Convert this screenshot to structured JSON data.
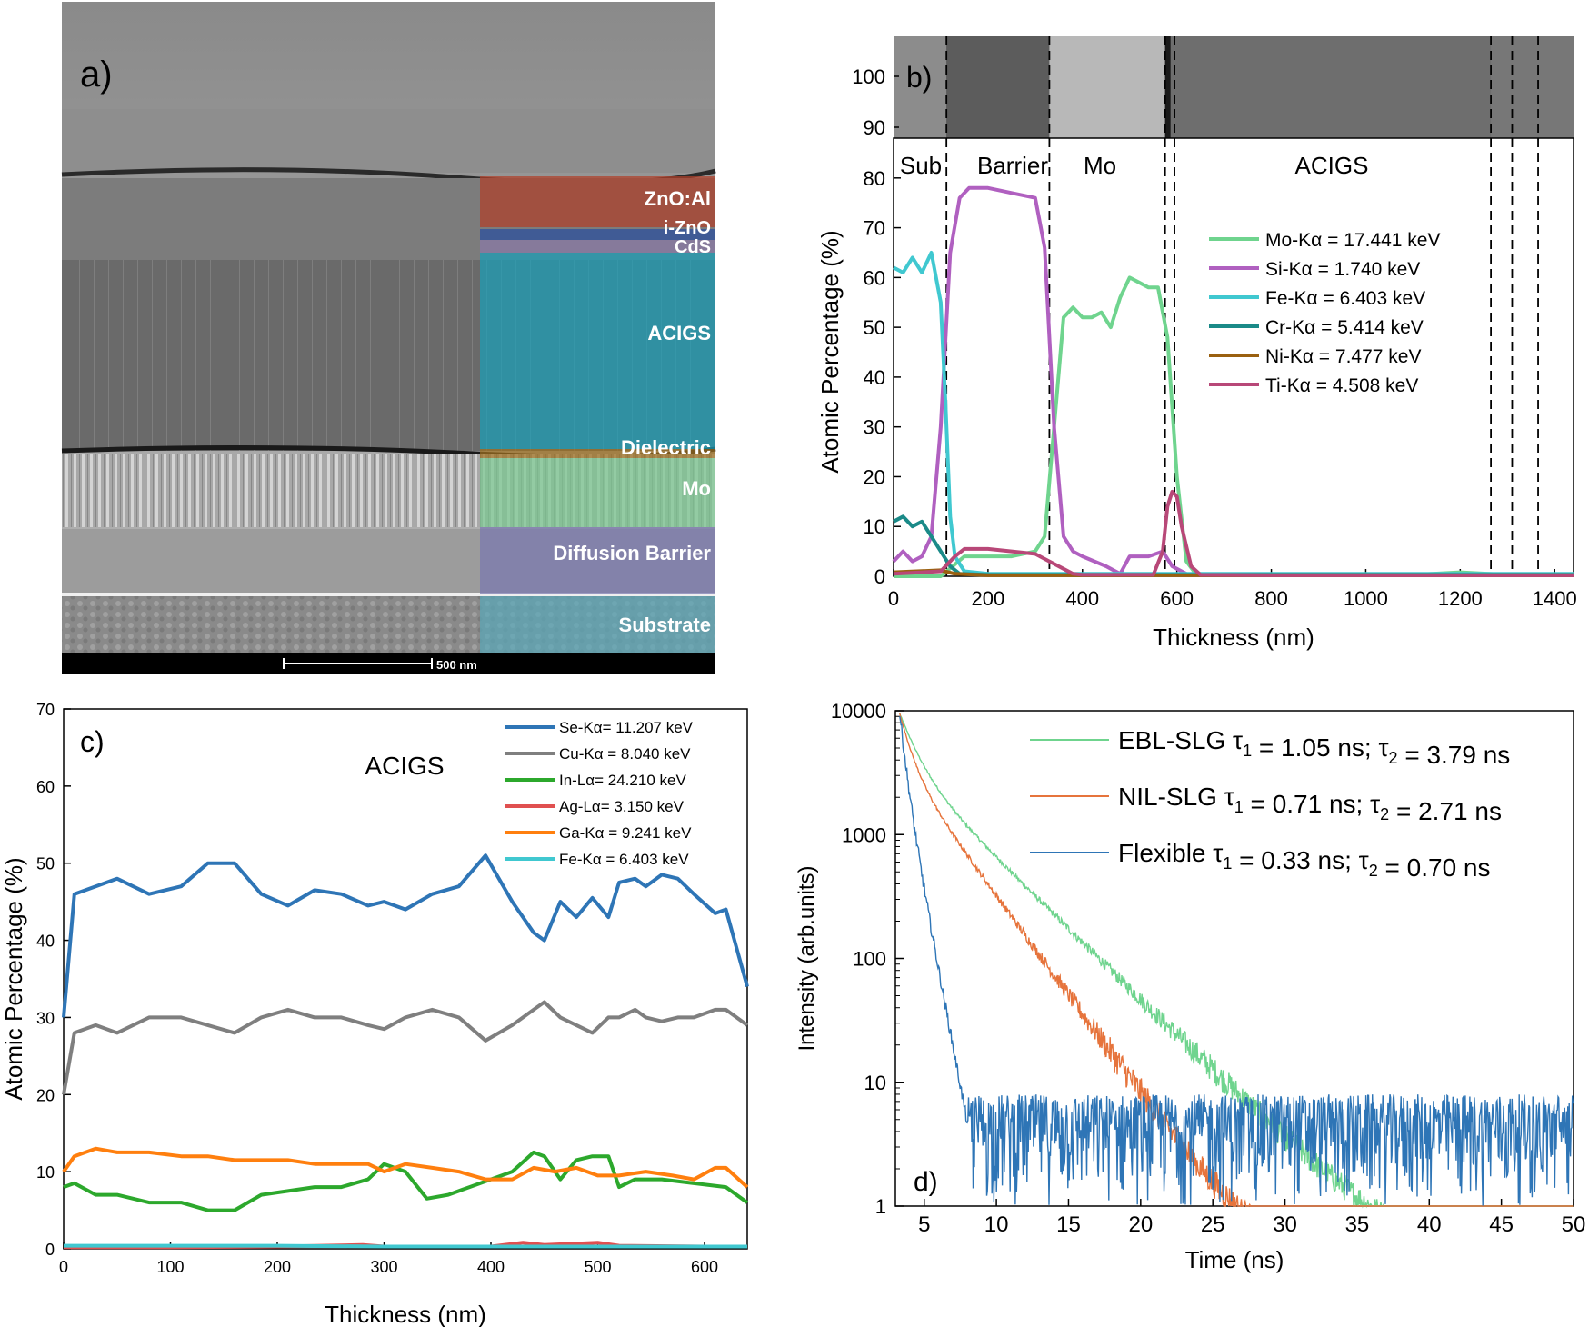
{
  "panel_a": {
    "label": "a)",
    "layers": [
      {
        "name": "ZnO:Al",
        "color": "#b0402a"
      },
      {
        "name": "i-ZnO",
        "color": "#2a4fa0"
      },
      {
        "name": "CdS",
        "color": "#8a7aa8"
      },
      {
        "name": "ACIGS",
        "color": "#1aa0b8"
      },
      {
        "name": "Dielectric",
        "color": "#a07020"
      },
      {
        "name": "Mo",
        "color": "#7ac890"
      },
      {
        "name": "Diffusion Barrier",
        "color": "#7a78b0"
      },
      {
        "name": "Substrate",
        "color": "#5aa8b8"
      }
    ],
    "scale_bar": "500 nm"
  },
  "chart_data": [
    {
      "id": "b",
      "type": "line",
      "panel_label": "b)",
      "xlabel": "Thickness (nm)",
      "ylabel": "Atomic Percentage (%)",
      "xlim": [
        0,
        1440
      ],
      "ylim": [
        0,
        88
      ],
      "xticks": [
        0,
        200,
        400,
        600,
        800,
        1000,
        1200,
        1400
      ],
      "yticks": [
        0,
        10,
        20,
        30,
        40,
        50,
        60,
        70,
        80
      ],
      "image_strip_ticks": [
        90,
        100
      ],
      "region_labels": [
        "Sub",
        "Barrier",
        "Mo",
        "ACIGS"
      ],
      "boundaries": [
        112,
        330,
        575,
        595,
        1265,
        1310,
        1365
      ],
      "series": [
        {
          "name": "Mo-Kα = 17.441 keV",
          "color": "#6fd48e",
          "x": [
            0,
            100,
            150,
            200,
            250,
            300,
            320,
            340,
            360,
            380,
            400,
            420,
            440,
            460,
            480,
            500,
            520,
            540,
            560,
            580,
            600,
            620,
            640,
            700,
            900,
            1100,
            1200,
            1300,
            1440
          ],
          "y": [
            0,
            0,
            4,
            4,
            4,
            5,
            8,
            30,
            52,
            54,
            52,
            52,
            53,
            50,
            56,
            60,
            59,
            58,
            58,
            48,
            20,
            3,
            0.5,
            0.3,
            0.3,
            0.3,
            0.8,
            0.3,
            0.3
          ]
        },
        {
          "name": "Si-Kα = 1.740 keV",
          "color": "#b060c0",
          "x": [
            0,
            20,
            40,
            60,
            80,
            100,
            120,
            140,
            160,
            200,
            250,
            300,
            320,
            340,
            360,
            380,
            400,
            450,
            480,
            500,
            540,
            570,
            590,
            620,
            640,
            700,
            900,
            1100,
            1440
          ],
          "y": [
            3,
            5,
            3,
            4,
            8,
            30,
            65,
            76,
            78,
            78,
            77,
            76,
            66,
            30,
            8,
            5,
            4,
            2,
            0.5,
            4,
            4,
            5,
            2,
            0.5,
            0.2,
            0.2,
            0.2,
            0.2,
            0.2
          ]
        },
        {
          "name": "Fe-Kα = 6.403 keV",
          "color": "#40c8d0",
          "x": [
            0,
            20,
            40,
            60,
            80,
            100,
            110,
            120,
            130,
            150,
            200,
            400,
            600,
            800,
            1000,
            1200,
            1440
          ],
          "y": [
            62,
            61,
            64,
            61,
            65,
            55,
            35,
            12,
            4,
            1,
            0.5,
            0.5,
            0.5,
            0.5,
            0.5,
            0.5,
            0.5
          ]
        },
        {
          "name": "Cr-Kα = 5.414 keV",
          "color": "#1a8a88",
          "x": [
            0,
            20,
            40,
            60,
            80,
            100,
            120,
            140,
            200,
            400,
            800,
            1440
          ],
          "y": [
            11,
            12,
            10,
            11,
            8,
            5,
            2,
            0.5,
            0.3,
            0.3,
            0.3,
            0.3
          ]
        },
        {
          "name": "Ni-Kα = 7.477 keV",
          "color": "#9a6010",
          "x": [
            0,
            100,
            130,
            200,
            400,
            800,
            1440
          ],
          "y": [
            0.8,
            1.2,
            0.5,
            0.2,
            0.2,
            0.2,
            0.2
          ]
        },
        {
          "name": "Ti-Kα = 4.508 keV",
          "color": "#b84878",
          "x": [
            0,
            100,
            130,
            150,
            200,
            250,
            300,
            330,
            360,
            380,
            400,
            550,
            570,
            580,
            590,
            600,
            610,
            630,
            650,
            800,
            1440
          ],
          "y": [
            0.5,
            1,
            4,
            5.5,
            5.5,
            5,
            4.5,
            3,
            1.5,
            0.5,
            0.3,
            0.3,
            5,
            14,
            17,
            16,
            10,
            2,
            0.3,
            0.2,
            0.2
          ]
        }
      ]
    },
    {
      "id": "c",
      "type": "line",
      "panel_label": "c)",
      "annotation": "ACIGS",
      "xlabel": "Thickness (nm)",
      "ylabel": "Atomic Percentage (%)",
      "xlim": [
        0,
        640
      ],
      "ylim": [
        0,
        70
      ],
      "xticks": [
        0,
        100,
        200,
        300,
        400,
        500,
        600
      ],
      "yticks": [
        0,
        10,
        20,
        30,
        40,
        50,
        60,
        70
      ],
      "series": [
        {
          "name": "Se-Kα= 11.207 keV",
          "color": "#2e75b6",
          "x": [
            0,
            10,
            30,
            50,
            80,
            110,
            135,
            160,
            185,
            210,
            235,
            260,
            285,
            300,
            320,
            345,
            370,
            395,
            420,
            440,
            450,
            465,
            480,
            495,
            510,
            520,
            535,
            545,
            560,
            575,
            590,
            610,
            620,
            640
          ],
          "y": [
            30,
            46,
            47,
            48,
            46,
            47,
            50,
            50,
            46,
            44.5,
            46.5,
            46,
            44.5,
            45,
            44,
            46,
            47,
            51,
            45,
            41,
            40,
            45,
            43,
            45.5,
            43,
            47.5,
            48,
            47,
            48.5,
            48,
            46,
            43.5,
            44,
            34
          ]
        },
        {
          "name": "Cu-Kα = 8.040 keV",
          "color": "#7f7f7f",
          "x": [
            0,
            10,
            30,
            50,
            80,
            110,
            135,
            160,
            185,
            210,
            235,
            260,
            285,
            300,
            320,
            345,
            370,
            395,
            420,
            440,
            450,
            465,
            480,
            495,
            510,
            520,
            535,
            545,
            560,
            575,
            590,
            610,
            620,
            640
          ],
          "y": [
            20,
            28,
            29,
            28,
            30,
            30,
            29,
            28,
            30,
            31,
            30,
            30,
            29,
            28.5,
            30,
            31,
            30,
            27,
            29,
            31,
            32,
            30,
            29,
            28,
            30,
            30,
            31,
            30,
            29.5,
            30,
            30,
            31,
            31,
            29
          ]
        },
        {
          "name": "In-Lα= 24.210 keV",
          "color": "#2ca82c",
          "x": [
            0,
            10,
            30,
            50,
            80,
            110,
            135,
            160,
            185,
            210,
            235,
            260,
            285,
            300,
            320,
            340,
            360,
            380,
            400,
            420,
            440,
            450,
            465,
            480,
            495,
            510,
            520,
            535,
            560,
            590,
            620,
            640
          ],
          "y": [
            8,
            8.5,
            7,
            7,
            6,
            6,
            5,
            5,
            7,
            7.5,
            8,
            8,
            9,
            11,
            10,
            6.5,
            7,
            8,
            9,
            10,
            12.5,
            12,
            9,
            11.5,
            12,
            12,
            8,
            9,
            9,
            8.5,
            8,
            6
          ]
        },
        {
          "name": "Ag-Lα= 3.150 keV",
          "color": "#e05050",
          "x": [
            0,
            100,
            200,
            280,
            300,
            400,
            430,
            450,
            500,
            520,
            600,
            640
          ],
          "y": [
            0.2,
            0.2,
            0.3,
            0.5,
            0.3,
            0.3,
            0.8,
            0.5,
            0.8,
            0.4,
            0.3,
            0.3
          ]
        },
        {
          "name": "Ga-Kα = 9.241 keV",
          "color": "#ff7f0e",
          "x": [
            0,
            10,
            30,
            50,
            80,
            110,
            135,
            160,
            185,
            210,
            235,
            260,
            285,
            300,
            320,
            345,
            370,
            395,
            420,
            440,
            460,
            480,
            500,
            520,
            545,
            570,
            590,
            610,
            620,
            640
          ],
          "y": [
            10,
            12,
            13,
            12.5,
            12.5,
            12,
            12,
            11.5,
            11.5,
            11.5,
            11,
            11,
            11,
            10,
            11,
            10.5,
            10,
            9,
            9,
            10.5,
            10,
            10.5,
            9.5,
            9.5,
            10,
            9.5,
            9,
            10.5,
            10.5,
            8
          ]
        },
        {
          "name": "Fe-Kα = 6.403 keV",
          "color": "#40c8d0",
          "x": [
            0,
            100,
            200,
            300,
            400,
            500,
            640
          ],
          "y": [
            0.4,
            0.4,
            0.4,
            0.3,
            0.3,
            0.3,
            0.3
          ]
        }
      ]
    },
    {
      "id": "d",
      "type": "line",
      "panel_label": "d)",
      "xlabel": "Time (ns)",
      "ylabel": "Intensity (arb.units)",
      "yscale": "log",
      "xlim": [
        3,
        50
      ],
      "ylim": [
        1,
        10000
      ],
      "xticks": [
        5,
        10,
        15,
        20,
        25,
        30,
        35,
        40,
        45,
        50
      ],
      "ytick_labels": [
        "1",
        "10",
        "100",
        "1000",
        "10000"
      ],
      "series": [
        {
          "name": "EBL-SLG",
          "color": "#6fd48e",
          "start_time": 3.3,
          "start_intensity": 9500,
          "tau1": 1.05,
          "tau2": 3.79,
          "legend_tau1": "1.05 ns",
          "legend_tau2": "3.79 ns"
        },
        {
          "name": "NIL-SLG",
          "color": "#e6743c",
          "start_time": 3.3,
          "start_intensity": 9500,
          "tau1": 0.71,
          "tau2": 2.71,
          "legend_tau1": "0.71 ns",
          "legend_tau2": "2.71 ns"
        },
        {
          "name": "Flexible",
          "color": "#2e75b6",
          "start_time": 3.3,
          "start_intensity": 9500,
          "tau1": 0.33,
          "tau2": 0.7,
          "legend_tau1": "0.33 ns",
          "legend_tau2": "0.70 ns"
        }
      ]
    }
  ]
}
